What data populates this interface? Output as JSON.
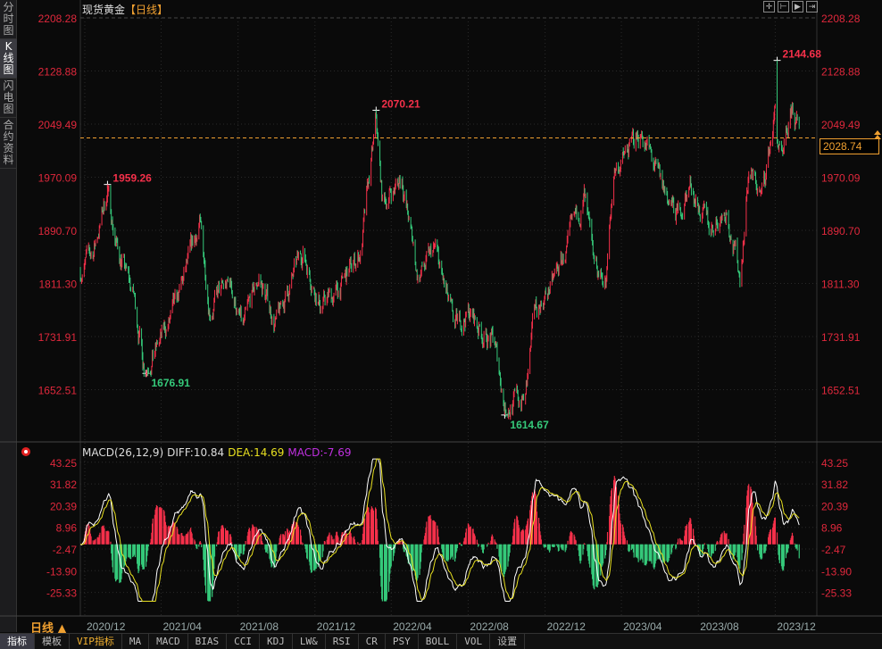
{
  "sidebar": {
    "items": [
      {
        "label": "分时图",
        "active": false
      },
      {
        "label": "K线图",
        "active": true
      },
      {
        "label": "闪电图",
        "active": false
      },
      {
        "label": "合约资料",
        "active": false
      }
    ]
  },
  "header": {
    "instrument": "现货黄金",
    "period_tag": "【日线】"
  },
  "toolbar_icons": [
    "crosshair-icon",
    "zoom-left-icon",
    "zoom-right-icon",
    "move-right-icon"
  ],
  "current_price": "2028.74",
  "period_selector": "日线 ▲",
  "macd_header": {
    "name": "MACD(26,12,9)",
    "diff": "DIFF:10.84",
    "dea": "DEA:14.69",
    "macd": "MACD:-7.69"
  },
  "bottom_tabs": [
    {
      "label": "指标",
      "active": true
    },
    {
      "label": "模板"
    },
    {
      "label": "VIP指标",
      "vip": true
    },
    {
      "label": "MA"
    },
    {
      "label": "MACD"
    },
    {
      "label": "BIAS"
    },
    {
      "label": "CCI"
    },
    {
      "label": "KDJ"
    },
    {
      "label": "LW&"
    },
    {
      "label": "RSI"
    },
    {
      "label": "CR"
    },
    {
      "label": "PSY"
    },
    {
      "label": "BOLL"
    },
    {
      "label": "VOL"
    },
    {
      "label": "设置"
    }
  ],
  "colors": {
    "up": "#f5304a",
    "down": "#35c97a",
    "axis_text": "#e0283c",
    "diff": "#ffffff",
    "dea": "#e8e020",
    "macd_label": "#c030e0",
    "price_line": "#f0a030"
  },
  "chart_data": [
    {
      "type": "candlestick",
      "title": "现货黄金【日线】",
      "yticks": [
        "2208.28",
        "2128.88",
        "2049.49",
        "1970.09",
        "1890.70",
        "1811.30",
        "1731.91",
        "1652.51"
      ],
      "ylim": [
        1600,
        2215
      ],
      "xticks": [
        "2020/12",
        "2021/04",
        "2021/08",
        "2021/12",
        "2022/04",
        "2022/08",
        "2022/12",
        "2023/04",
        "2023/08",
        "2023/12"
      ],
      "grid": true,
      "approx_closes": [
        [
          "2020-11-24",
          1830
        ],
        [
          "2020-12-15",
          1860
        ],
        [
          "2021-01-06",
          1950
        ],
        [
          "2021-01-20",
          1870
        ],
        [
          "2021-02-17",
          1790
        ],
        [
          "2021-03-05",
          1690
        ],
        [
          "2021-03-29",
          1720
        ],
        [
          "2021-04-27",
          1780
        ],
        [
          "2021-06-01",
          1900
        ],
        [
          "2021-06-17",
          1780
        ],
        [
          "2021-07-20",
          1810
        ],
        [
          "2021-08-09",
          1740
        ],
        [
          "2021-09-03",
          1820
        ],
        [
          "2021-09-30",
          1750
        ],
        [
          "2021-11-12",
          1860
        ],
        [
          "2021-12-10",
          1780
        ],
        [
          "2022-01-08",
          1800
        ],
        [
          "2022-02-12",
          1860
        ],
        [
          "2022-03-08",
          2050
        ],
        [
          "2022-03-18",
          1930
        ],
        [
          "2022-04-18",
          1970
        ],
        [
          "2022-05-13",
          1820
        ],
        [
          "2022-06-10",
          1860
        ],
        [
          "2022-07-10",
          1740
        ],
        [
          "2022-08-01",
          1770
        ],
        [
          "2022-08-22",
          1740
        ],
        [
          "2022-09-12",
          1720
        ],
        [
          "2022-09-28",
          1630
        ],
        [
          "2022-10-31",
          1640
        ],
        [
          "2022-11-15",
          1770
        ],
        [
          "2022-12-13",
          1810
        ],
        [
          "2023-01-12",
          1880
        ],
        [
          "2023-02-01",
          1940
        ],
        [
          "2023-02-15",
          1835
        ],
        [
          "2023-03-08",
          1815
        ],
        [
          "2023-03-20",
          1980
        ],
        [
          "2023-04-13",
          2010
        ],
        [
          "2023-05-03",
          2040
        ],
        [
          "2023-06-01",
          1960
        ],
        [
          "2023-06-29",
          1910
        ],
        [
          "2023-07-20",
          1960
        ],
        [
          "2023-08-17",
          1890
        ],
        [
          "2023-09-15",
          1925
        ],
        [
          "2023-10-06",
          1820
        ],
        [
          "2023-10-20",
          1980
        ],
        [
          "2023-11-10",
          1940
        ],
        [
          "2023-12-01",
          2070
        ],
        [
          "2023-12-04",
          2030
        ],
        [
          "2023-12-13",
          1985
        ],
        [
          "2023-12-28",
          2070
        ],
        [
          "2024-01-08",
          2028.74
        ]
      ],
      "annotations": [
        {
          "date": "2021-01-06",
          "label": "1959.26",
          "value": 1959.26,
          "kind": "high"
        },
        {
          "date": "2021-03-08",
          "label": "1676.91",
          "value": 1676.91,
          "kind": "low"
        },
        {
          "date": "2022-03-08",
          "label": "2070.21",
          "value": 2070.21,
          "kind": "high"
        },
        {
          "date": "2022-09-28",
          "label": "1614.67",
          "value": 1614.67,
          "kind": "low"
        },
        {
          "date": "2023-12-04",
          "label": "2144.68",
          "value": 2144.68,
          "kind": "high"
        }
      ],
      "last_price": 2028.74
    },
    {
      "type": "macd",
      "yticks": [
        "43.25",
        "31.82",
        "20.39",
        "8.96",
        "-2.47",
        "-13.90",
        "-25.33"
      ],
      "ylim": [
        -31,
        46
      ],
      "series": [
        {
          "name": "DIFF",
          "last": 10.84
        },
        {
          "name": "DEA",
          "last": 14.69
        },
        {
          "name": "MACD",
          "last": -7.69
        }
      ]
    }
  ]
}
